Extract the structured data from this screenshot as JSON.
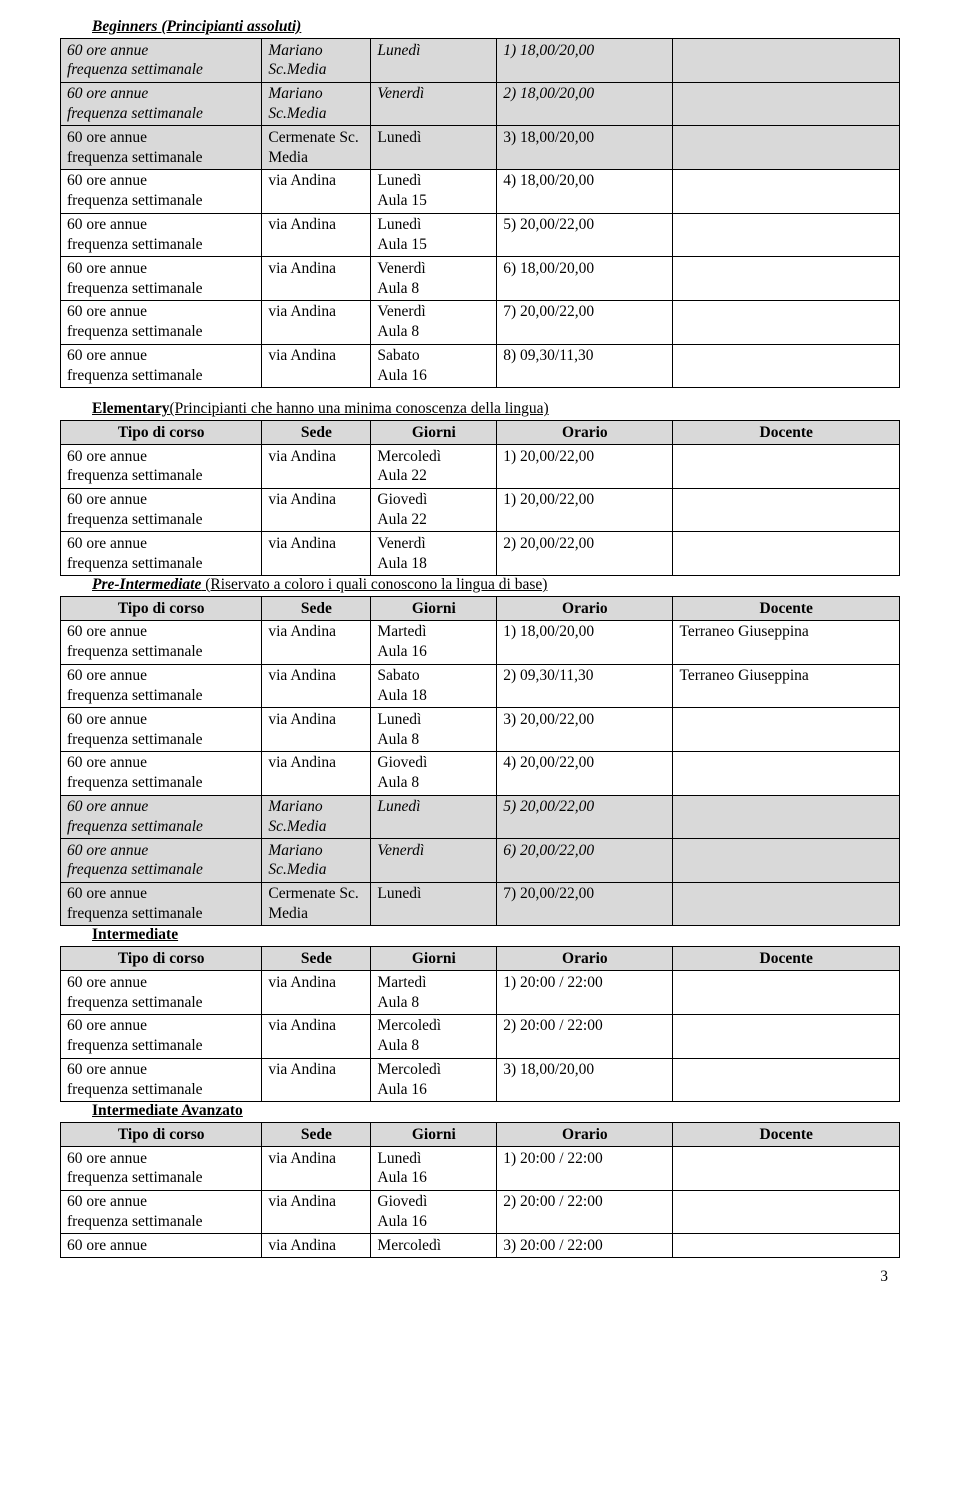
{
  "beginners": {
    "title": "Beginners",
    "suffix": " (Principianti assoluti)",
    "rows": [
      {
        "c": "it gr",
        "tipo1": "60 ore annue",
        "tipo2": "frequenza settimanale",
        "sede": "Mariano Sc.Media",
        "giorni": "Lunedì",
        "orario": "1) 18,00/20,00",
        "doc": ""
      },
      {
        "c": "it gr",
        "tipo1": "60 ore annue",
        "tipo2": "frequenza settimanale",
        "sede": "Mariano Sc.Media",
        "giorni": "Venerdì",
        "orario": "2) 18,00/20,00",
        "doc": ""
      },
      {
        "c": "gr",
        "tipo1": "60 ore annue",
        "tipo2": "frequenza settimanale",
        "sede": "Cermenate Sc. Media",
        "giorni": "Lunedì",
        "orario": "3) 18,00/20,00",
        "doc": ""
      },
      {
        "c": "",
        "tipo1": "60 ore annue",
        "tipo2": "frequenza settimanale",
        "sede": "via Andina",
        "g1": "Lunedì",
        "g2": "Aula 15",
        "orario": "4) 18,00/20,00",
        "doc": ""
      },
      {
        "c": "",
        "tipo1": "60 ore annue",
        "tipo2": "frequenza settimanale",
        "sede": "via Andina",
        "g1": "Lunedì",
        "g2": "Aula 15",
        "orario": "5) 20,00/22,00",
        "doc": ""
      },
      {
        "c": "",
        "tipo1": "60 ore annue",
        "tipo2": "frequenza settimanale",
        "sede": "via Andina",
        "g1": "Venerdì",
        "g2": "Aula 8",
        "orario": "6) 18,00/20,00",
        "doc": ""
      },
      {
        "c": "",
        "tipo1": "60 ore annue",
        "tipo2": "frequenza settimanale",
        "sede": "via Andina",
        "g1": "Venerdì",
        "g2": "Aula 8",
        "orario": "7) 20,00/22,00",
        "doc": ""
      },
      {
        "c": "",
        "tipo1": "60 ore annue",
        "tipo2": "frequenza settimanale",
        "sede": "via Andina",
        "g1": "Sabato",
        "g2": "Aula 16",
        "orario": "8) 09,30/11,30",
        "doc": ""
      }
    ]
  },
  "elementary": {
    "title": "Elementary",
    "suffix": "(Principianti che hanno una minima conoscenza della lingua)",
    "headers": {
      "h1": "Tipo di corso",
      "h2": "Sede",
      "h3": "Giorni",
      "h4": "Orario",
      "h5": "Docente"
    },
    "rows": [
      {
        "c": "",
        "tipo1": "60 ore annue",
        "tipo2": "frequenza settimanale",
        "sede": "via Andina",
        "g1": "Mercoledì",
        "g2": "Aula 22",
        "orario": "1) 20,00/22,00",
        "doc": ""
      },
      {
        "c": "",
        "tipo1": "60 ore annue",
        "tipo2": "frequenza settimanale",
        "sede": "via Andina",
        "g1": "Giovedì",
        "g2": "Aula 22",
        "orario": "1) 20,00/22,00",
        "doc": ""
      },
      {
        "c": "",
        "tipo1": "60 ore annue",
        "tipo2": "frequenza settimanale",
        "sede": "via Andina",
        "g1": "Venerdì",
        "g2": "Aula 18",
        "orario": "2) 20,00/22,00",
        "doc": ""
      }
    ]
  },
  "preint": {
    "title": "Pre-Intermediate",
    "suffix": " (Riservato a coloro i quali conoscono la lingua di base)",
    "headers": {
      "h1": "Tipo di corso",
      "h2": "Sede",
      "h3": "Giorni",
      "h4": "Orario",
      "h5": "Docente"
    },
    "rows": [
      {
        "c": "",
        "tipo1": "60 ore annue",
        "tipo2": "frequenza settimanale",
        "sede": "via Andina",
        "g1": "Martedì",
        "g2": "Aula 16",
        "orario": "1) 18,00/20,00",
        "doc": "Terraneo Giuseppina"
      },
      {
        "c": "",
        "tipo1": "60 ore annue",
        "tipo2": "frequenza settimanale",
        "sede": "via Andina",
        "g1": "Sabato",
        "g2": "Aula 18",
        "orario": "2) 09,30/11,30",
        "doc": "Terraneo Giuseppina"
      },
      {
        "c": "",
        "tipo1": "60 ore annue",
        "tipo2": "frequenza settimanale",
        "sede": "via Andina",
        "g1": "Lunedì",
        "g2": "Aula 8",
        "orario": "3) 20,00/22,00",
        "doc": ""
      },
      {
        "c": "",
        "tipo1": "60 ore annue",
        "tipo2": "frequenza settimanale",
        "sede": "via Andina",
        "g1": "Giovedì",
        "g2": "Aula 8",
        "orario": "4) 20,00/22,00",
        "doc": ""
      },
      {
        "c": "it gr",
        "tipo1": "60 ore annue",
        "tipo2": "frequenza settimanale",
        "sede": "Mariano Sc.Media",
        "giorni": "Lunedì",
        "orario": "5) 20,00/22,00",
        "doc": ""
      },
      {
        "c": "it gr",
        "tipo1": "60 ore annue",
        "tipo2": "frequenza settimanale",
        "sede": "Mariano Sc.Media",
        "giorni": "Venerdì",
        "orario": "6) 20,00/22,00",
        "doc": ""
      },
      {
        "c": "gr",
        "tipo1": "60 ore annue",
        "tipo2": "frequenza settimanale",
        "sede": "Cermenate Sc. Media",
        "giorni": "Lunedì",
        "orario": "7) 20,00/22,00",
        "doc": ""
      }
    ]
  },
  "intermediate": {
    "title": "Intermediate",
    "headers": {
      "h1": "Tipo di corso",
      "h2": "Sede",
      "h3": "Giorni",
      "h4": "Orario",
      "h5": "Docente"
    },
    "rows": [
      {
        "c": "",
        "tipo1": "60 ore annue",
        "tipo2": "frequenza settimanale",
        "sede": "via Andina",
        "g1": "Martedì",
        "g2": "Aula 8",
        "orario": "1) 20:00 / 22:00",
        "doc": ""
      },
      {
        "c": "",
        "tipo1": "60 ore annue",
        "tipo2": "frequenza settimanale",
        "sede": "via Andina",
        "g1": "Mercoledì",
        "g2": "Aula 8",
        "orario": "2) 20:00 / 22:00",
        "doc": ""
      },
      {
        "c": "",
        "tipo1": "60 ore annue",
        "tipo2": "frequenza settimanale",
        "sede": "via Andina",
        "g1": "Mercoledì",
        "g2": "Aula 16",
        "orario": "3) 18,00/20,00",
        "doc": ""
      }
    ]
  },
  "intav": {
    "title": "Intermediate Avanzato",
    "headers": {
      "h1": "Tipo di corso",
      "h2": "Sede",
      "h3": "Giorni",
      "h4": "Orario",
      "h5": "Docente"
    },
    "rows": [
      {
        "c": "",
        "tipo1": "60 ore annue",
        "tipo2": "frequenza settimanale",
        "sede": "via Andina",
        "g1": "Lunedì",
        "g2": "Aula 16",
        "orario": "1) 20:00 / 22:00",
        "doc": ""
      },
      {
        "c": "",
        "tipo1": "60 ore annue",
        "tipo2": "frequenza settimanale",
        "sede": "via Andina",
        "g1": "Giovedì",
        "g2": "Aula 16",
        "orario": "2) 20:00 / 22:00",
        "doc": ""
      },
      {
        "c": "",
        "tipo1": "60 ore annue",
        "tipo2": "",
        "sede": "via Andina",
        "g1": "Mercoledì",
        "g2": "",
        "orario": "3) 20:00 / 22:00",
        "doc": ""
      }
    ]
  },
  "page": "3"
}
